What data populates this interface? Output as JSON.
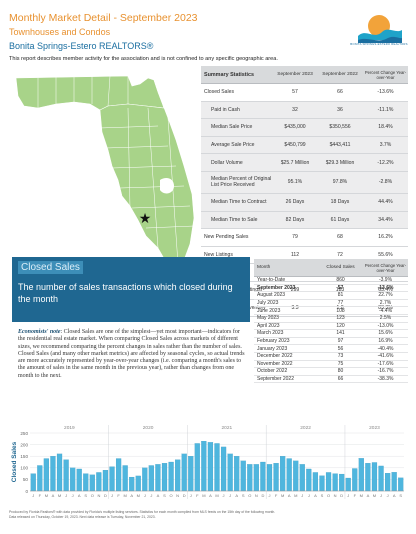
{
  "header": {
    "title": "Monthly Market Detail - September 2023",
    "subtitle": "Townhouses and Condos",
    "association": "Bonita Springs-Estero REALTORS®",
    "note": "This report describes member activity for the association and is not confined to any specific geographic area."
  },
  "logo": {
    "text": "BONITA SPRINGS-ESTERO REALTORS",
    "colors": {
      "sun": "#f2a33a",
      "wave": "#1fa3c9",
      "sea": "#1a6ea0"
    }
  },
  "summary": {
    "headers": [
      "Summary Statistics",
      "September 2023",
      "September 2022",
      "Percent Change Year-over-Year"
    ],
    "rows": [
      {
        "label": "Closed Sales",
        "v1": "57",
        "v2": "66",
        "pct": "-13.6%",
        "indent": 0
      },
      {
        "label": "Paid in Cash",
        "v1": "32",
        "v2": "36",
        "pct": "-11.1%",
        "indent": 1
      },
      {
        "label": "Median Sale Price",
        "v1": "$435,000",
        "v2": "$350,556",
        "pct": "18.4%",
        "indent": 1
      },
      {
        "label": "Average Sale Price",
        "v1": "$450,799",
        "v2": "$443,411",
        "pct": "3.7%",
        "indent": 1
      },
      {
        "label": "Dollar Volume",
        "v1": "$25.7 Million",
        "v2": "$29.3 Million",
        "pct": "-12.2%",
        "indent": 1
      },
      {
        "label": "Median Percent of Original List Price Received",
        "v1": "95.1%",
        "v2": "97.8%",
        "pct": "-2.8%",
        "indent": 1,
        "tall": true
      },
      {
        "label": "Median Time to Contract",
        "v1": "26 Days",
        "v2": "18 Days",
        "pct": "44.4%",
        "indent": 1
      },
      {
        "label": "Median Time to Sale",
        "v1": "82 Days",
        "v2": "61 Days",
        "pct": "34.4%",
        "indent": 1
      },
      {
        "label": "New Pending Sales",
        "v1": "79",
        "v2": "68",
        "pct": "16.2%",
        "indent": 0
      },
      {
        "label": "New Listings",
        "v1": "112",
        "v2": "72",
        "pct": "55.6%",
        "indent": 0
      },
      {
        "label": "Pending Inventory",
        "v1": "146",
        "v2": "168",
        "pct": "-13.1%",
        "indent": 0
      },
      {
        "label": "Inventory (Active Listings)",
        "v1": "299",
        "v2": "183",
        "pct": "63.4%",
        "indent": 0
      },
      {
        "label": "Months Supply of Inventory",
        "v1": "3.3",
        "v2": "1.8",
        "pct": "83.3%",
        "indent": 0
      }
    ]
  },
  "panel": {
    "caption": "Closed Sales",
    "lead": "The number of sales transactions which closed during the month",
    "note_label": "Economists' note",
    "note_text": ": Closed Sales are one of the simplest—yet most important—indicators for the residential real estate market. When comparing Closed Sales across markets of different sizes, we recommend comparing the percent changes in sales rather than the number of sales. Closed Sales (and many other market metrics) are affected by seasonal cycles, so actual trends are more accurately represented by year-over-year changes (i.e. comparing a month's sales to the amount of sales in the same month in the previous year), rather than changes from one month to the next."
  },
  "monthly": {
    "headers": [
      "Month",
      "Closed Sales",
      "Percent Change Year-over-Year"
    ],
    "rows": [
      {
        "month": "Year-to-Date",
        "value": "860",
        "pct": "-3.9%"
      },
      {
        "month": "September 2023",
        "value": "57",
        "pct": "-13.6%",
        "bold": true
      },
      {
        "month": "August 2023",
        "value": "81",
        "pct": "22.7%"
      },
      {
        "month": "July 2023",
        "value": "77",
        "pct": "2.7%"
      },
      {
        "month": "June 2023",
        "value": "108",
        "pct": "-4.4%"
      },
      {
        "month": "May 2023",
        "value": "123",
        "pct": "2.5%"
      },
      {
        "month": "April 2023",
        "value": "120",
        "pct": "-13.0%"
      },
      {
        "month": "March 2023",
        "value": "141",
        "pct": "15.6%"
      },
      {
        "month": "February 2023",
        "value": "97",
        "pct": "16.9%"
      },
      {
        "month": "January 2023",
        "value": "56",
        "pct": "-40.4%"
      },
      {
        "month": "December 2022",
        "value": "73",
        "pct": "-41.6%"
      },
      {
        "month": "November 2022",
        "value": "75",
        "pct": "-17.6%"
      },
      {
        "month": "October 2022",
        "value": "80",
        "pct": "-16.7%"
      },
      {
        "month": "September 2022",
        "value": "66",
        "pct": "-38.3%"
      }
    ]
  },
  "chart_data": {
    "type": "bar",
    "ylabel": "Closed Sales",
    "ylim": [
      0,
      250
    ],
    "yticks": [
      0,
      50,
      100,
      150,
      200,
      250
    ],
    "year_labels": [
      "2019",
      "2020",
      "2021",
      "2022",
      "2023"
    ],
    "categories": [
      "J",
      "F",
      "M",
      "A",
      "M",
      "J",
      "J",
      "A",
      "S",
      "O",
      "N",
      "D",
      "J",
      "F",
      "M",
      "A",
      "M",
      "J",
      "J",
      "A",
      "S",
      "O",
      "N",
      "D",
      "J",
      "F",
      "M",
      "A",
      "M",
      "J",
      "J",
      "A",
      "S",
      "O",
      "N",
      "D",
      "J",
      "F",
      "M",
      "A",
      "M",
      "J",
      "J",
      "A",
      "S",
      "O",
      "N",
      "D",
      "J",
      "F",
      "M",
      "A",
      "M",
      "J",
      "J",
      "A",
      "S"
    ],
    "values": [
      75,
      110,
      140,
      150,
      160,
      135,
      100,
      95,
      75,
      70,
      80,
      90,
      105,
      140,
      110,
      60,
      65,
      100,
      110,
      115,
      120,
      125,
      135,
      160,
      150,
      205,
      215,
      210,
      205,
      190,
      160,
      150,
      130,
      115,
      115,
      125,
      115,
      120,
      150,
      140,
      130,
      115,
      95,
      80,
      66,
      80,
      75,
      73,
      56,
      97,
      141,
      120,
      123,
      108,
      77,
      81,
      57
    ],
    "grid": true,
    "bar_color": "#4fb6de"
  },
  "footer": {
    "line1": "Produced by Florida Realtors® with data provided by Florida's multiple listing services. Statistics for each month compiled from MLS feeds on the 15th day of the following month.",
    "line2": "Data released on Thursday, October 19, 2023. Next data release is Tuesday, November 21, 2023."
  }
}
